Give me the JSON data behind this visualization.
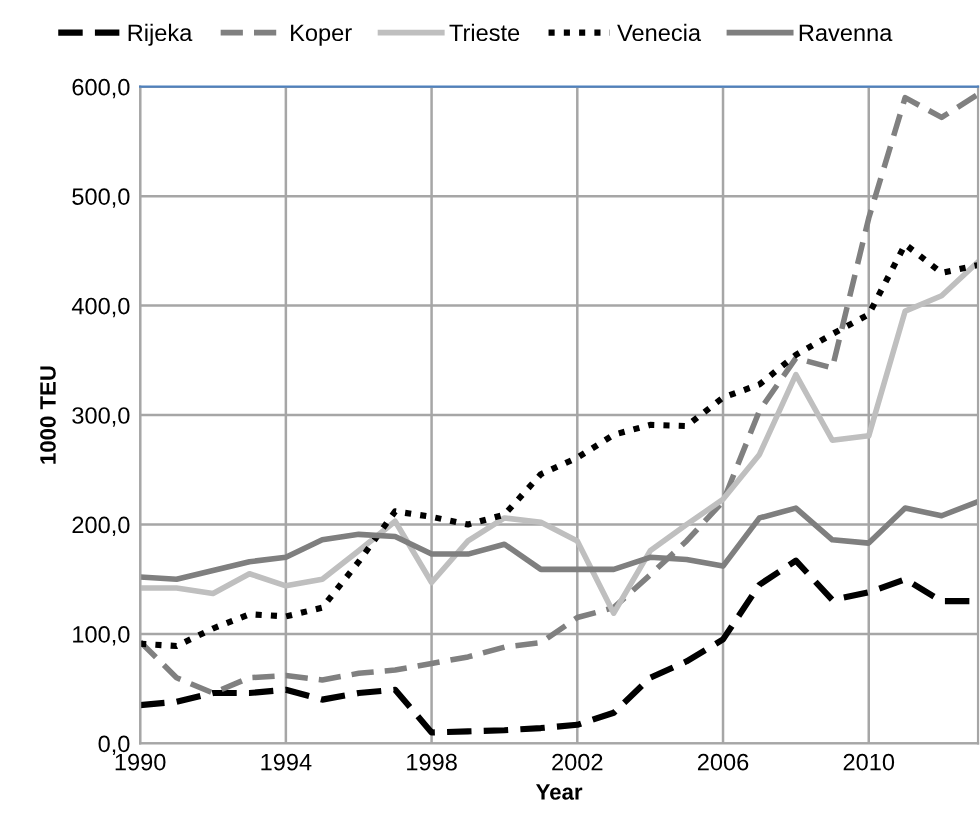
{
  "chart_data": {
    "type": "line",
    "xlabel": "Year",
    "ylabel": "1000 TEU",
    "x": [
      1990,
      1991,
      1992,
      1993,
      1994,
      1995,
      1996,
      1997,
      1998,
      1999,
      2000,
      2001,
      2002,
      2003,
      2004,
      2005,
      2006,
      2007,
      2008,
      2009,
      2010,
      2011,
      2012,
      2013
    ],
    "series": [
      {
        "name": "Rijeka",
        "color": "#000000",
        "line_style": "dashed",
        "values": [
          35,
          38,
          46,
          46,
          49,
          40,
          46,
          49,
          10,
          11,
          12,
          14,
          17,
          28,
          60,
          75,
          95,
          145,
          167,
          131,
          138,
          150,
          130,
          130
        ]
      },
      {
        "name": "Koper",
        "color": "#808080",
        "line_style": "dashed",
        "values": [
          93,
          60,
          46,
          60,
          62,
          58,
          64,
          67,
          73,
          79,
          88,
          92,
          115,
          124,
          154,
          185,
          221,
          304,
          352,
          343,
          480,
          590,
          572,
          593
        ]
      },
      {
        "name": "Trieste",
        "color": "#bfbfbf",
        "line_style": "solid",
        "values": [
          142,
          142,
          137,
          155,
          144,
          150,
          176,
          203,
          147,
          185,
          206,
          202,
          185,
          119,
          176,
          200,
          223,
          264,
          337,
          277,
          281,
          395,
          409,
          440
        ]
      },
      {
        "name": "Venecia",
        "color": "#000000",
        "line_style": "dotted",
        "values": [
          91,
          89,
          105,
          118,
          116,
          124,
          166,
          212,
          207,
          200,
          209,
          246,
          261,
          282,
          291,
          290,
          316,
          328,
          355,
          374,
          392,
          456,
          430,
          437
        ]
      },
      {
        "name": "Ravenna",
        "color": "#7f7f7f",
        "line_style": "solid",
        "values": [
          152,
          150,
          158,
          166,
          170,
          186,
          191,
          189,
          173,
          173,
          182,
          159,
          159,
          159,
          170,
          168,
          162,
          206,
          215,
          186,
          183,
          215,
          208,
          221
        ]
      }
    ],
    "xlim": [
      1990,
      2013
    ],
    "ylim": [
      0,
      600
    ],
    "xticks": [
      1990,
      1994,
      1998,
      2002,
      2006,
      2010
    ],
    "yticks": [
      {
        "value": 0,
        "label": "0,0"
      },
      {
        "value": 100,
        "label": "100,0"
      },
      {
        "value": 200,
        "label": "200,0"
      },
      {
        "value": 300,
        "label": "300,0"
      },
      {
        "value": 400,
        "label": "400,0"
      },
      {
        "value": 500,
        "label": "500,0"
      },
      {
        "value": 600,
        "label": "600,0"
      }
    ],
    "grid": true,
    "legend": "top",
    "marker": "none"
  }
}
